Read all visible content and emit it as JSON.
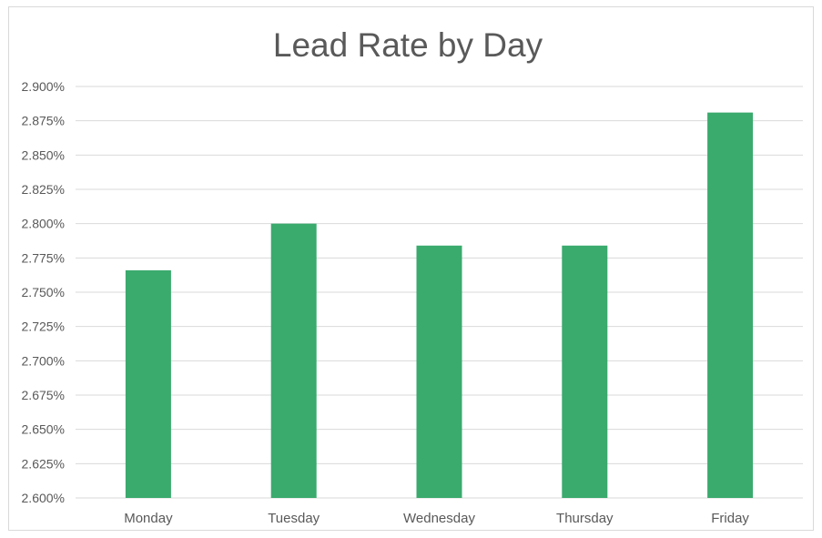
{
  "chart_data": {
    "type": "bar",
    "title": "Lead Rate by Day",
    "xlabel": "",
    "ylabel": "",
    "categories": [
      "Monday",
      "Tuesday",
      "Wednesday",
      "Thursday",
      "Friday"
    ],
    "values": [
      0.02766,
      0.028,
      0.02784,
      0.02784,
      0.02881
    ],
    "ylim": [
      0.026,
      0.029
    ],
    "y_ticks": [
      "2.600%",
      "2.625%",
      "2.650%",
      "2.675%",
      "2.700%",
      "2.725%",
      "2.750%",
      "2.775%",
      "2.800%",
      "2.825%",
      "2.850%",
      "2.875%",
      "2.900%"
    ],
    "grid": true,
    "legend": "none",
    "bar_color": "#3aaa6d"
  }
}
